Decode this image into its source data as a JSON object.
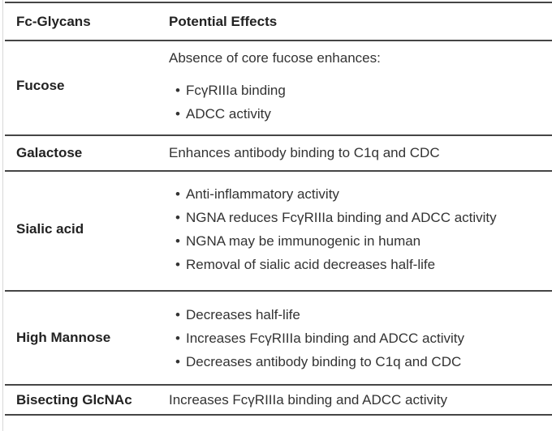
{
  "table": {
    "columns": [
      "Fc-Glycans",
      "Potential Effects"
    ],
    "rows": [
      {
        "glycan": "Fucose",
        "intro": "Absence of core fucose enhances:",
        "bullets": [
          "FcγRIIIa binding",
          "ADCC activity"
        ]
      },
      {
        "glycan": "Galactose",
        "text": "Enhances antibody binding to C1q and CDC"
      },
      {
        "glycan": "Sialic acid",
        "bullets": [
          "Anti-inflammatory activity",
          "NGNA reduces FcγRIIIa binding and ADCC activity",
          "NGNA may be immunogenic in human",
          "Removal of sialic acid decreases half-life"
        ]
      },
      {
        "glycan": "High Mannose",
        "bullets": [
          "Decreases half-life",
          "Increases FcγRIIIa binding and ADCC activity",
          "Decreases antibody binding to C1q and CDC"
        ]
      },
      {
        "glycan": "Bisecting GlcNAc",
        "text": "Increases FcγRIIIa binding and ADCC activity"
      }
    ]
  },
  "colors": {
    "border": "#454545",
    "heading_text": "#222222",
    "body_text": "#333333",
    "page_edge_line": "#d8d8d8",
    "background": "#ffffff"
  }
}
